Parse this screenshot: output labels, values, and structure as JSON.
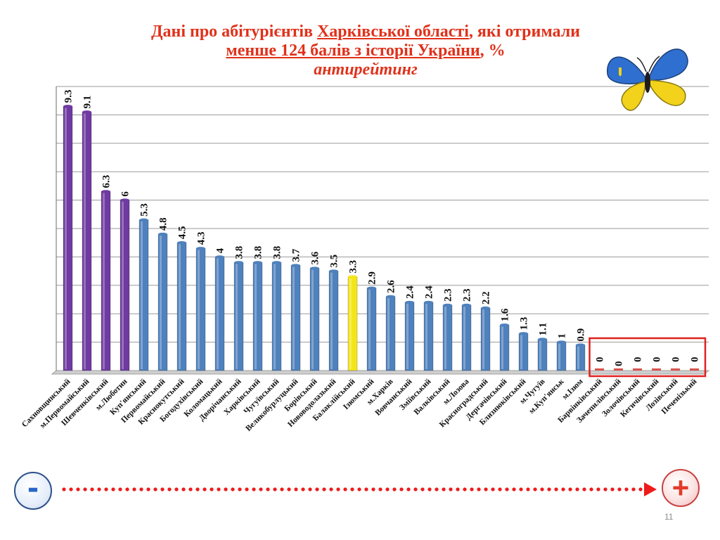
{
  "title": {
    "line1_prefix": "Дані про абітурієнтів ",
    "line1_link": "Харківської  області",
    "line1_suffix": ", які отримали",
    "line2_link": "менше 124 балів  з історії України",
    "line2_suffix": ", %",
    "line3": "антирейтинг"
  },
  "chart_data": {
    "type": "bar",
    "categories": [
      "Сахновщинський",
      "м.Первомайський",
      "Шевченківський",
      "м.Люботин",
      "Куп'янський",
      "Первомайський",
      "Краснокутський",
      "Богодухівський",
      "Коломацький",
      "Дворічанський",
      "Харківський",
      "Чугуївський",
      "Великобурлуцький",
      "Борівський",
      "Нововодолазький",
      "Балаклійський",
      "Ізюмський",
      "м.Харків",
      "Вовчанський",
      "Зміївський",
      "Валківський",
      "м.Лозова",
      "Красноградський",
      "Дергачівський",
      "Близнюківський",
      "м.Чугуїв",
      "м.Куп'янськ",
      "м.Ізюм",
      "Барвінківський",
      "Зачепилівський",
      "Золочівський",
      "Кегичівський",
      "Лозівський",
      "Печенізький"
    ],
    "values": [
      9.3,
      9.1,
      6.3,
      6,
      5.3,
      4.8,
      4.5,
      4.3,
      4,
      3.8,
      3.8,
      3.8,
      3.7,
      3.6,
      3.5,
      3.3,
      2.9,
      2.6,
      2.4,
      2.4,
      2.3,
      2.3,
      2.2,
      1.6,
      1.3,
      1.1,
      1,
      0.9,
      0,
      0,
      0,
      0,
      0,
      0
    ],
    "value_labels": [
      "9.3",
      "9.1",
      "6.3",
      "6",
      "5.3",
      "4.8",
      "4.5",
      "4.3",
      "4",
      "3.8",
      "3.8",
      "3.8",
      "3.7",
      "3.6",
      "3.5",
      "3.3",
      "2.9",
      "2.6",
      "2.4",
      "2.4",
      "2.3",
      "2.3",
      "2.2",
      "1.6",
      "1.3",
      "1.1",
      "1",
      "0.9",
      "0",
      "0",
      "0",
      "0",
      "0",
      "0"
    ],
    "colors": {
      "purple": "#6f3aa1",
      "blue": "#4f81bd",
      "highlight": "#f4e519",
      "zero": "#d9534f",
      "box": "#e02020"
    },
    "purple_count": 4,
    "highlight_category": "Балаклійський",
    "ylim": [
      0,
      10
    ],
    "grid": true,
    "xlabel": "",
    "ylabel": ""
  },
  "scale": {
    "minus_label": "-",
    "plus_label": "+"
  },
  "page_number": "11"
}
